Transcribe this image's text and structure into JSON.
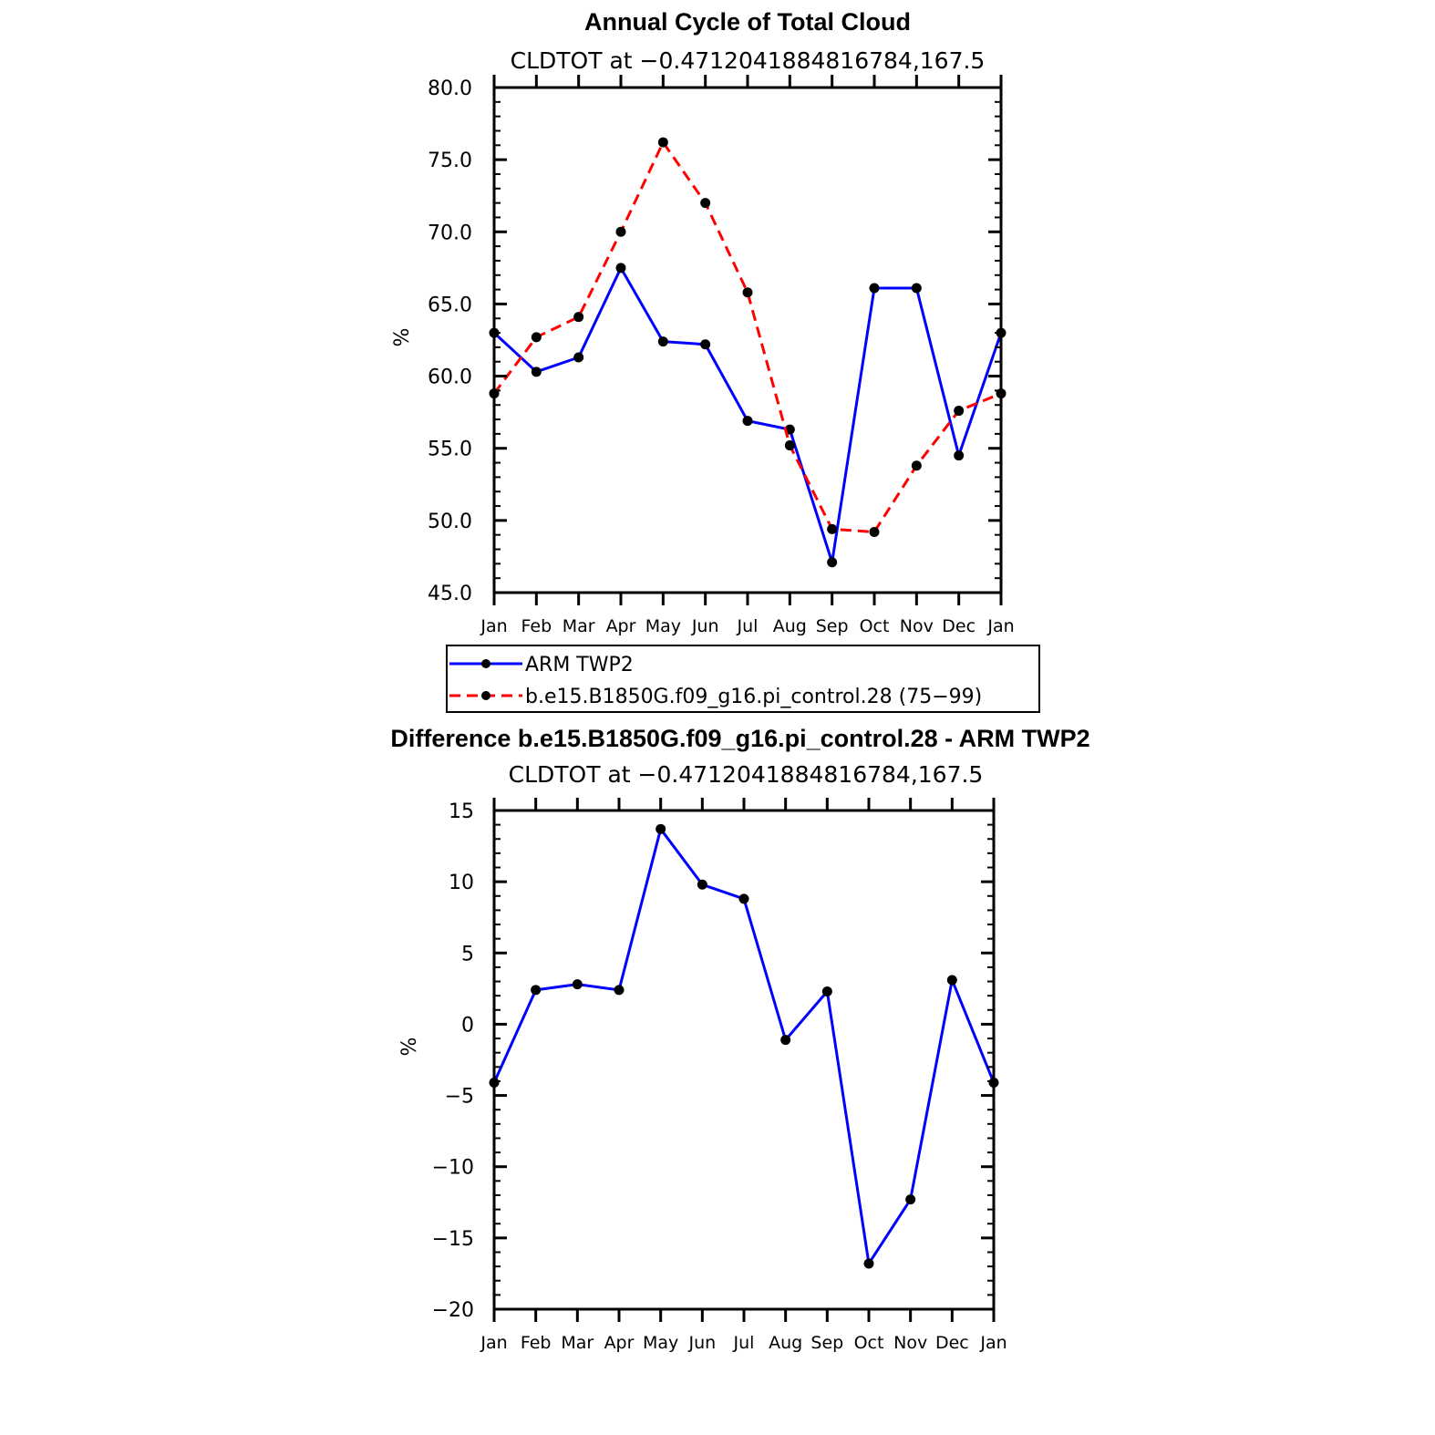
{
  "chart_data": [
    {
      "type": "line",
      "title": "Annual Cycle of Total Cloud",
      "subtitle": "CLDTOT at −0.4712041884816784,167.5",
      "xlabel": "",
      "ylabel": "%",
      "categories": [
        "Jan",
        "Feb",
        "Mar",
        "Apr",
        "May",
        "Jun",
        "Jul",
        "Aug",
        "Sep",
        "Oct",
        "Nov",
        "Dec",
        "Jan"
      ],
      "ylim": [
        45,
        80
      ],
      "yticks": [
        45,
        50,
        55,
        60,
        65,
        70,
        75,
        80
      ],
      "ytick_labels": [
        "45.0",
        "50.0",
        "55.0",
        "60.0",
        "65.0",
        "70.0",
        "75.0",
        "80.0"
      ],
      "series": [
        {
          "name": "ARM TWP2",
          "color": "#0000ff",
          "dash": "solid",
          "values": [
            63.0,
            60.3,
            61.3,
            67.5,
            62.4,
            62.2,
            56.9,
            56.3,
            47.1,
            66.1,
            66.1,
            54.5,
            63.0
          ]
        },
        {
          "name": "b.e15.B1850G.f09_g16.pi_control.28 (75−99)",
          "color": "#ff0000",
          "dash": "dashed",
          "values": [
            58.8,
            62.7,
            64.1,
            70.0,
            76.2,
            72.0,
            65.8,
            55.2,
            49.4,
            49.2,
            53.8,
            57.6,
            58.8
          ]
        }
      ],
      "legend_position": "bottom"
    },
    {
      "type": "line",
      "title": "Difference b.e15.B1850G.f09_g16.pi_control.28 - ARM TWP2",
      "subtitle": "CLDTOT at −0.4712041884816784,167.5",
      "xlabel": "",
      "ylabel": "%",
      "categories": [
        "Jan",
        "Feb",
        "Mar",
        "Apr",
        "May",
        "Jun",
        "Jul",
        "Aug",
        "Sep",
        "Oct",
        "Nov",
        "Dec",
        "Jan"
      ],
      "ylim": [
        -20,
        15
      ],
      "yticks": [
        -20,
        -15,
        -10,
        -5,
        0,
        5,
        10,
        15
      ],
      "ytick_labels": [
        "−20",
        "−15",
        "−10",
        "−5",
        "0",
        "5",
        "10",
        "15"
      ],
      "series": [
        {
          "name": "Difference",
          "color": "#0000ff",
          "dash": "solid",
          "values": [
            -4.1,
            2.4,
            2.8,
            2.4,
            13.7,
            9.8,
            8.8,
            -1.1,
            2.3,
            -16.8,
            -12.3,
            3.1,
            -4.1
          ]
        }
      ]
    }
  ]
}
